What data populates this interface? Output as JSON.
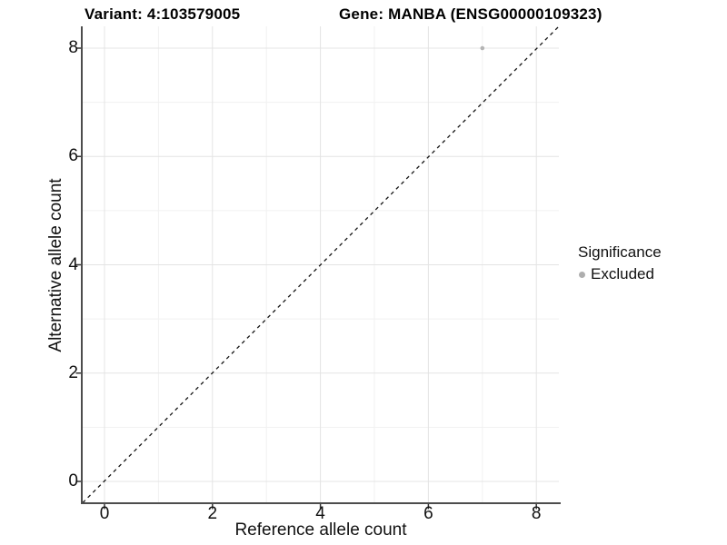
{
  "chart_data": {
    "type": "scatter",
    "title_left": "Variant: 4:103579005",
    "title_right": "Gene: MANBA (ENSG00000109323)",
    "xlabel": "Reference allele count",
    "ylabel": "Alternative allele count",
    "xlim": [
      -0.4,
      8.4
    ],
    "ylim": [
      -0.4,
      8.4
    ],
    "x_ticks": [
      0,
      2,
      4,
      6,
      8
    ],
    "y_ticks": [
      0,
      2,
      4,
      6,
      8
    ],
    "x_minor_ticks": [
      1,
      3,
      5,
      7
    ],
    "y_minor_ticks": [
      1,
      3,
      5,
      7
    ],
    "grid": "major+minor",
    "points": [
      {
        "x": 7,
        "y": 8,
        "significance": "Excluded"
      }
    ],
    "reference_line": {
      "style": "dashed",
      "slope": 1,
      "intercept": 0
    },
    "legend": {
      "title": "Significance",
      "position": "right",
      "items": [
        {
          "label": "Excluded",
          "color": "#b4b4b4"
        }
      ]
    },
    "colors": {
      "point_excluded": "#b4b4b4",
      "legend_dot": "#aeaeae",
      "axis_line": "#4d4d4d",
      "grid_major": "#e4e4e4",
      "grid_minor": "#f1f1f1",
      "dashed_line": "#141414",
      "text": "#111111"
    }
  }
}
